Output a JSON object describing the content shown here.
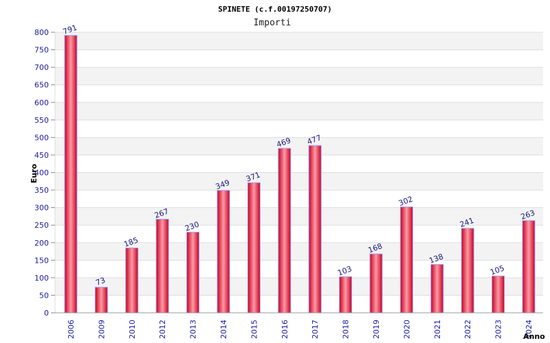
{
  "chart_data": {
    "type": "bar",
    "title": "SPINETE (c.f.00197250707)",
    "subtitle": "Importi",
    "xlabel": "Anno",
    "ylabel": "Euro",
    "categories": [
      "2006",
      "2009",
      "2010",
      "2012",
      "2013",
      "2014",
      "2015",
      "2016",
      "2017",
      "2018",
      "2019",
      "2020",
      "2021",
      "2022",
      "2023",
      "2024"
    ],
    "values": [
      791,
      73,
      185,
      267,
      230,
      349,
      371,
      469,
      477,
      103,
      168,
      302,
      138,
      241,
      105,
      263
    ],
    "ylim": [
      0,
      800
    ],
    "ytick_step": 50,
    "grid": true,
    "legend": "none",
    "colors": {
      "bar_edge": "#c8001e",
      "bar_center": "#ff9aa6",
      "bar_outline": "#a0a0ff",
      "band_light": "#f3f3f3",
      "band_white": "#ffffff",
      "grid": "#dddddd",
      "tick_text": "#1a1aa0",
      "data_label": "#1a1a80"
    }
  }
}
